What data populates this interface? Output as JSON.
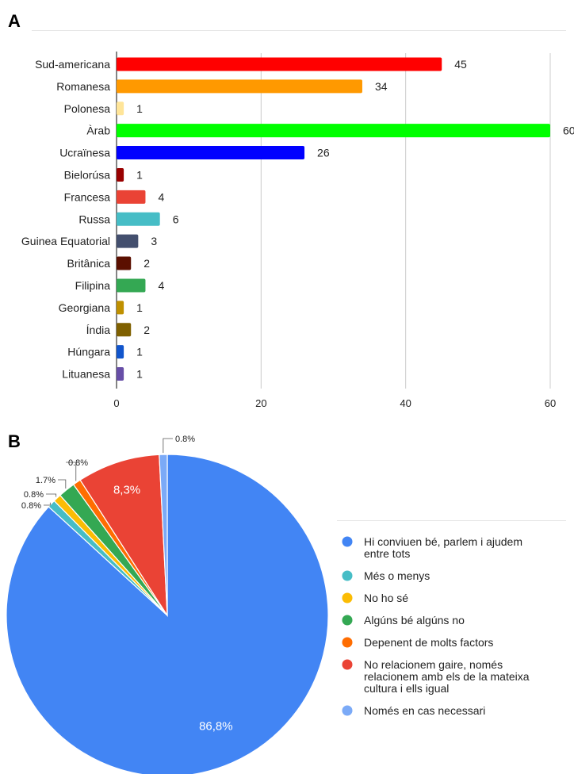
{
  "panels": {
    "a": "A",
    "b": "B"
  },
  "chart_data": [
    {
      "type": "bar",
      "orientation": "horizontal",
      "title": "",
      "xlabel": "",
      "ylabel": "",
      "xlim": [
        0,
        60
      ],
      "ticks": [
        "0",
        "20",
        "40",
        "60"
      ],
      "grid": true,
      "categories": [
        "Sud-americana",
        "Romanesa",
        "Polonesa",
        "Àrab",
        "Ucraïnesa",
        "Bielorúsa",
        "Francesa",
        "Russa",
        "Guinea Equatorial",
        "Britânica",
        "Filipina",
        "Georgiana",
        "Índia",
        "Húngara",
        "Lituanesa"
      ],
      "values": [
        45,
        34,
        1,
        60,
        26,
        1,
        4,
        6,
        3,
        2,
        4,
        1,
        2,
        1,
        1
      ],
      "value_labels": [
        "45",
        "34",
        "1",
        "60",
        "26",
        "1",
        "4",
        "6",
        "3",
        "2",
        "4",
        "1",
        "2",
        "1",
        "1"
      ],
      "colors": [
        "#ff0000",
        "#ff9900",
        "#ffe599",
        "#00ff00",
        "#0000ff",
        "#990000",
        "#ea4335",
        "#46bdc6",
        "#434f6e",
        "#5b0f00",
        "#34a853",
        "#bf9000",
        "#7f6000",
        "#1155cc",
        "#674ea7"
      ]
    },
    {
      "type": "pie",
      "title": "",
      "legend_position": "right",
      "slices": [
        {
          "label": "Hi conviuen bé, parlem i ajudem entre tots",
          "legend_lines": [
            "Hi conviuen bé, parlem i ajudem",
            "entre tots"
          ],
          "value": 86.8,
          "display": "86,8%",
          "color": "#4285f4"
        },
        {
          "label": "Més o menys",
          "legend_lines": [
            "Més o menys"
          ],
          "value": 0.8,
          "display": "0.8%",
          "color": "#46bdc6"
        },
        {
          "label": "No ho sé",
          "legend_lines": [
            "No ho sé"
          ],
          "value": 0.8,
          "display": "0.8%",
          "color": "#fbbc04"
        },
        {
          "label": "Algúns bé algúns no",
          "legend_lines": [
            "Algúns bé algúns no"
          ],
          "value": 1.7,
          "display": "1.7%",
          "color": "#34a853"
        },
        {
          "label": "Depenent de molts factors",
          "legend_lines": [
            "Depenent de molts factors"
          ],
          "value": 0.8,
          "display": "0.8%",
          "color": "#ff6d01"
        },
        {
          "label": "No relacionem gaire, només relacionem amb els de la mateixa cultura i ells igual",
          "legend_lines": [
            "No relacionem gaire, només",
            "relacionem amb els de la mateixa",
            "cultura i ells igual"
          ],
          "value": 8.3,
          "display": "8,3%",
          "color": "#ea4335"
        },
        {
          "label": "Només en cas necessari",
          "legend_lines": [
            "Només en cas necessari"
          ],
          "value": 0.8,
          "display": "0.8%",
          "color": "#7baaf7"
        }
      ]
    }
  ]
}
